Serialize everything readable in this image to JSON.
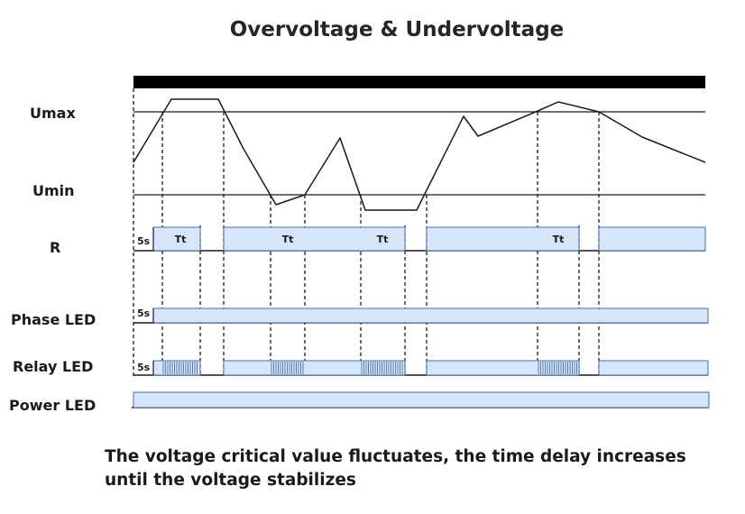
{
  "title": "Overvoltage & Undervoltage",
  "labels": {
    "umax": "Umax",
    "umin": "Umin",
    "r": "R",
    "phase_led": "Phase LED",
    "relay_led": "Relay LED",
    "power_led": "Power LED"
  },
  "timing": {
    "startup_delay": "5s",
    "trip_delay": "Tt"
  },
  "caption": {
    "line1": "The voltage critical value fluctuates, the  time delay increases",
    "line2": "until the voltage stabilizes"
  },
  "colors": {
    "on_fill": "#d6e5f9",
    "on_stroke": "#4a6fa5",
    "line": "#1a1a1a",
    "top_bar": "#000000"
  }
}
